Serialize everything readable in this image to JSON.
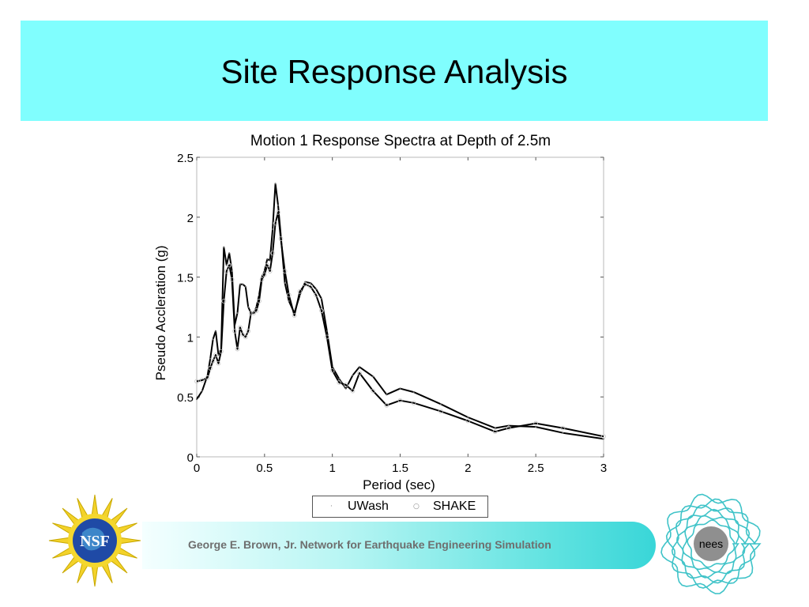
{
  "slide": {
    "title": "Site Response Analysis",
    "title_band_color": "#80fefe"
  },
  "footer": {
    "text": "George E. Brown, Jr. Network for Earthquake Engineering Simulation",
    "text_color": "#6e6e6e"
  },
  "logos": {
    "left": {
      "label": "NSF",
      "icon": "nsf-logo-icon"
    },
    "right": {
      "label": "nees",
      "icon": "nees-logo-icon"
    }
  },
  "chart_data": {
    "type": "line",
    "title": "Motion 1 Response Spectra at Depth of 2.5m",
    "xlabel": "Period (sec)",
    "ylabel": "Pseudo Accleration (g)",
    "xlim": [
      0,
      3
    ],
    "ylim": [
      0,
      2.5
    ],
    "xticks": [
      0,
      0.5,
      1,
      1.5,
      2,
      2.5,
      3
    ],
    "xtick_labels": [
      "0",
      "0.5",
      "1",
      "1.5",
      "2",
      "2.5",
      "3"
    ],
    "yticks": [
      0,
      0.5,
      1,
      1.5,
      2,
      2.5
    ],
    "ytick_labels": [
      "0",
      "0.5",
      "1",
      "1.5",
      "2",
      "2.5"
    ],
    "grid": false,
    "legend_position": "bottom-center",
    "series": [
      {
        "name": "UWash",
        "color": "#000000",
        "x": [
          0.0,
          0.04,
          0.08,
          0.1,
          0.12,
          0.14,
          0.16,
          0.18,
          0.2,
          0.22,
          0.24,
          0.26,
          0.28,
          0.3,
          0.32,
          0.34,
          0.36,
          0.38,
          0.4,
          0.42,
          0.44,
          0.46,
          0.48,
          0.5,
          0.52,
          0.54,
          0.56,
          0.58,
          0.6,
          0.62,
          0.65,
          0.68,
          0.72,
          0.76,
          0.8,
          0.84,
          0.88,
          0.92,
          0.96,
          1.0,
          1.05,
          1.1,
          1.15,
          1.2,
          1.3,
          1.4,
          1.5,
          1.6,
          1.8,
          2.0,
          2.2,
          2.3,
          2.5,
          2.7,
          3.0
        ],
        "y": [
          0.48,
          0.55,
          0.68,
          0.82,
          0.98,
          1.05,
          0.85,
          0.9,
          1.75,
          1.6,
          1.7,
          1.55,
          1.1,
          1.2,
          1.44,
          1.44,
          1.42,
          1.25,
          1.2,
          1.2,
          1.25,
          1.35,
          1.5,
          1.55,
          1.65,
          1.64,
          1.9,
          2.28,
          2.1,
          1.85,
          1.45,
          1.3,
          1.2,
          1.35,
          1.46,
          1.45,
          1.4,
          1.32,
          1.05,
          0.75,
          0.65,
          0.57,
          0.68,
          0.75,
          0.67,
          0.52,
          0.57,
          0.54,
          0.44,
          0.33,
          0.24,
          0.26,
          0.25,
          0.2,
          0.15
        ]
      },
      {
        "name": "SHAKE",
        "color": "#000000",
        "x": [
          0.0,
          0.04,
          0.08,
          0.1,
          0.12,
          0.14,
          0.16,
          0.18,
          0.2,
          0.22,
          0.24,
          0.26,
          0.28,
          0.3,
          0.32,
          0.34,
          0.36,
          0.38,
          0.4,
          0.42,
          0.44,
          0.46,
          0.48,
          0.5,
          0.52,
          0.54,
          0.56,
          0.58,
          0.6,
          0.62,
          0.65,
          0.68,
          0.72,
          0.76,
          0.8,
          0.84,
          0.88,
          0.92,
          0.96,
          1.0,
          1.05,
          1.1,
          1.15,
          1.2,
          1.3,
          1.4,
          1.5,
          1.6,
          1.8,
          2.0,
          2.2,
          2.3,
          2.5,
          2.7,
          3.0
        ],
        "y": [
          0.63,
          0.64,
          0.66,
          0.74,
          0.8,
          0.85,
          0.78,
          0.88,
          1.3,
          1.55,
          1.6,
          1.48,
          1.05,
          0.9,
          1.08,
          1.02,
          1.0,
          1.05,
          1.2,
          1.2,
          1.22,
          1.3,
          1.48,
          1.52,
          1.6,
          1.55,
          1.7,
          1.95,
          2.04,
          1.82,
          1.55,
          1.35,
          1.18,
          1.38,
          1.44,
          1.42,
          1.35,
          1.22,
          1.0,
          0.72,
          0.62,
          0.6,
          0.55,
          0.7,
          0.55,
          0.43,
          0.47,
          0.45,
          0.38,
          0.3,
          0.21,
          0.24,
          0.28,
          0.24,
          0.17
        ]
      }
    ]
  }
}
